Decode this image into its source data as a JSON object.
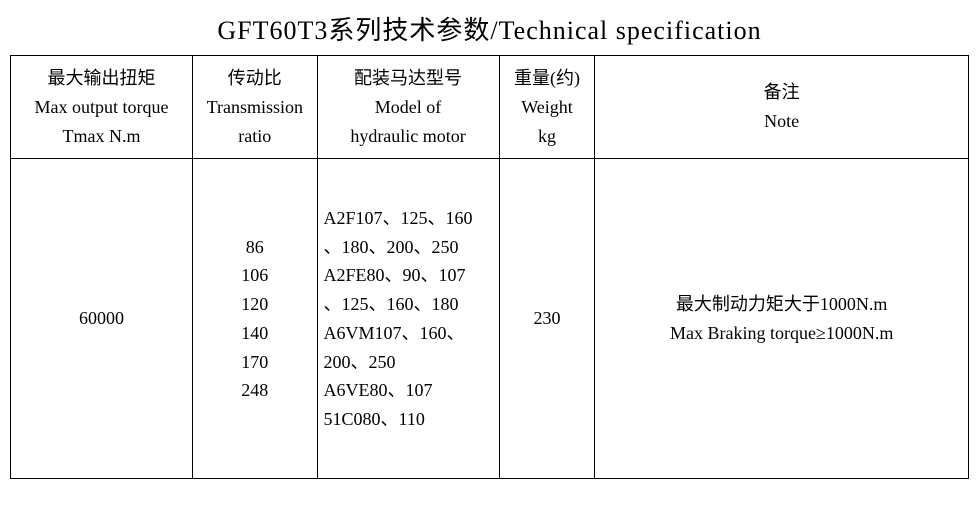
{
  "title": "GFT60T3系列技术参数/Technical specification",
  "table": {
    "columns": [
      {
        "cn": "最大输出扭矩",
        "en1": "Max output torque",
        "en2": "Tmax N.m",
        "align": "center",
        "width_class": "col-torque"
      },
      {
        "cn": "传动比",
        "en1": "Transmission",
        "en2": "ratio",
        "align": "center",
        "width_class": "col-ratio"
      },
      {
        "cn": "配装马达型号",
        "en1": "Model of",
        "en2": "hydraulic motor",
        "align": "center",
        "width_class": "col-motor"
      },
      {
        "cn": "重量(约)",
        "en1": "Weight",
        "en2": "kg",
        "align": "center",
        "width_class": "col-weight"
      },
      {
        "cn": "备注",
        "en1": "Note",
        "en2": "",
        "align": "center",
        "width_class": "col-note"
      }
    ],
    "row": {
      "max_output_torque": "60000",
      "transmission_ratio": "86\n106\n120\n140\n170\n248",
      "hydraulic_motor": "A2F107、125、160\n、180、200、250\nA2FE80、90、107\n、125、160、180\nA6VM107、160、\n200、250\nA6VE80、107\n51C080、110",
      "weight": "230",
      "note": "最大制动力矩大于1000N.m\nMax Braking torque≥1000N.m"
    }
  },
  "style": {
    "background_color": "#ffffff",
    "border_color": "#000000",
    "title_fontsize": 26,
    "cell_fontsize": 18,
    "font_family": "SimSun"
  }
}
